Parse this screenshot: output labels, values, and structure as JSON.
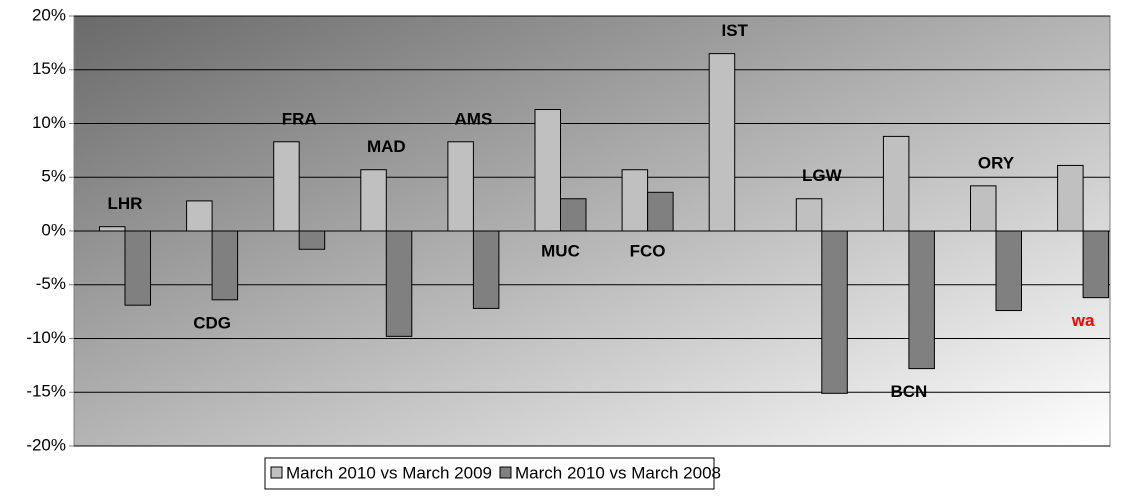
{
  "chart_data": {
    "type": "bar",
    "categories": [
      "LHR",
      "CDG",
      "FRA",
      "MAD",
      "AMS",
      "MUC",
      "FCO",
      "IST",
      "LGW",
      "BCN",
      "ORY",
      "wa"
    ],
    "category_colors": [
      "#000000",
      "#000000",
      "#000000",
      "#000000",
      "#000000",
      "#000000",
      "#000000",
      "#000000",
      "#000000",
      "#000000",
      "#000000",
      "#ff0000"
    ],
    "series": [
      {
        "name": "March 2010 vs March 2009",
        "color": "#c0c0c0",
        "values": [
          0.4,
          2.8,
          8.3,
          5.7,
          8.3,
          11.3,
          5.7,
          16.5,
          3.0,
          8.8,
          4.2,
          6.1
        ]
      },
      {
        "name": "March 2010 vs March 2008",
        "color": "#808080",
        "values": [
          -6.9,
          -6.4,
          -1.7,
          -9.8,
          -7.2,
          3.0,
          3.6,
          null,
          -15.1,
          -12.8,
          -7.4,
          -6.2
        ]
      }
    ],
    "ylim": [
      -20,
      20
    ],
    "yticks": [
      {
        "value": -20,
        "label": "-20%"
      },
      {
        "value": -15,
        "label": "-15%"
      },
      {
        "value": -10,
        "label": "-10%"
      },
      {
        "value": -5,
        "label": "-5%"
      },
      {
        "value": 0,
        "label": "0%"
      },
      {
        "value": 5,
        "label": "5%"
      },
      {
        "value": 10,
        "label": "10%"
      },
      {
        "value": 15,
        "label": "15%"
      },
      {
        "value": 20,
        "label": "20%"
      }
    ],
    "grid": true,
    "legend": "bottom"
  }
}
